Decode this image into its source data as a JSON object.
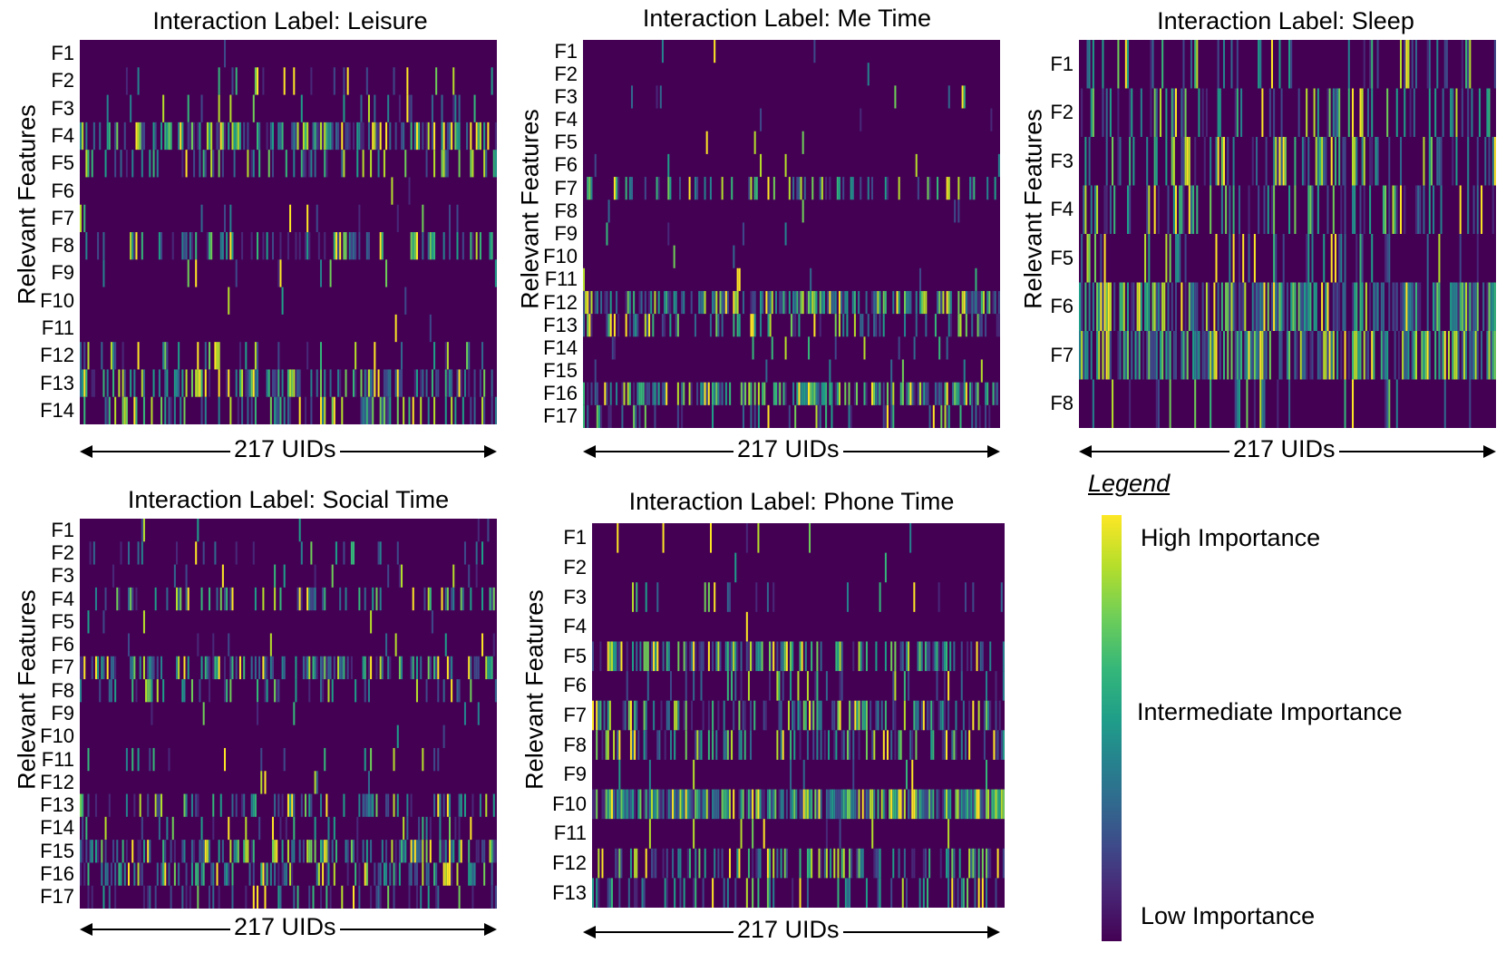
{
  "chart_data": [
    {
      "type": "heatmap",
      "title": "Interaction Label: Leisure",
      "ylabel": "Relevant Features",
      "xlabel": "217 UIDs",
      "n_columns": 217,
      "rows": [
        "F1",
        "F2",
        "F3",
        "F4",
        "F5",
        "F6",
        "F7",
        "F8",
        "F9",
        "F10",
        "F11",
        "F12",
        "F13",
        "F14"
      ],
      "row_density": [
        0.01,
        0.12,
        0.12,
        0.55,
        0.3,
        0.02,
        0.08,
        0.3,
        0.06,
        0.02,
        0.01,
        0.15,
        0.5,
        0.35
      ],
      "colorscale": "viridis",
      "vmin": 0,
      "vmax": 1
    },
    {
      "type": "heatmap",
      "title": "Interaction Label: Me Time",
      "ylabel": "Relevant Features",
      "xlabel": "217 UIDs",
      "n_columns": 217,
      "rows": [
        "F1",
        "F2",
        "F3",
        "F4",
        "F5",
        "F6",
        "F7",
        "F8",
        "F9",
        "F10",
        "F11",
        "F12",
        "F13",
        "F14",
        "F15",
        "F16",
        "F17"
      ],
      "row_density": [
        0.01,
        0.01,
        0.02,
        0.01,
        0.01,
        0.03,
        0.3,
        0.04,
        0.02,
        0.01,
        0.04,
        0.6,
        0.35,
        0.06,
        0.04,
        0.6,
        0.25
      ],
      "colorscale": "viridis",
      "vmin": 0,
      "vmax": 1
    },
    {
      "type": "heatmap",
      "title": "Interaction Label: Sleep",
      "ylabel": "Relevant Features",
      "xlabel": "217 UIDs",
      "n_columns": 217,
      "rows": [
        "F1",
        "F2",
        "F3",
        "F4",
        "F5",
        "F6",
        "F7",
        "F8"
      ],
      "row_density": [
        0.25,
        0.3,
        0.3,
        0.35,
        0.2,
        0.7,
        0.7,
        0.15
      ],
      "colorscale": "viridis",
      "vmin": 0,
      "vmax": 1
    },
    {
      "type": "heatmap",
      "title": "Interaction Label: Social Time",
      "ylabel": "Relevant Features",
      "xlabel": "217 UIDs",
      "n_columns": 217,
      "rows": [
        "F1",
        "F2",
        "F3",
        "F4",
        "F5",
        "F6",
        "F7",
        "F8",
        "F9",
        "F10",
        "F11",
        "F12",
        "F13",
        "F14",
        "F15",
        "F16",
        "F17"
      ],
      "row_density": [
        0.01,
        0.15,
        0.06,
        0.3,
        0.05,
        0.05,
        0.45,
        0.2,
        0.04,
        0.01,
        0.08,
        0.02,
        0.35,
        0.2,
        0.55,
        0.4,
        0.2
      ],
      "colorscale": "viridis",
      "vmin": 0,
      "vmax": 1
    },
    {
      "type": "heatmap",
      "title": "Interaction Label: Phone Time",
      "ylabel": "Relevant Features",
      "xlabel": "217 UIDs",
      "n_columns": 217,
      "rows": [
        "F1",
        "F2",
        "F3",
        "F4",
        "F5",
        "F6",
        "F7",
        "F8",
        "F9",
        "F10",
        "F11",
        "F12",
        "F13"
      ],
      "row_density": [
        0.03,
        0.01,
        0.08,
        0.01,
        0.5,
        0.12,
        0.45,
        0.35,
        0.05,
        0.85,
        0.03,
        0.4,
        0.25
      ],
      "colorscale": "viridis",
      "vmin": 0,
      "vmax": 1
    }
  ],
  "legend": {
    "title": "Legend",
    "high": "High Importance",
    "intermediate": "Intermediate Importance",
    "low": "Low Importance"
  }
}
